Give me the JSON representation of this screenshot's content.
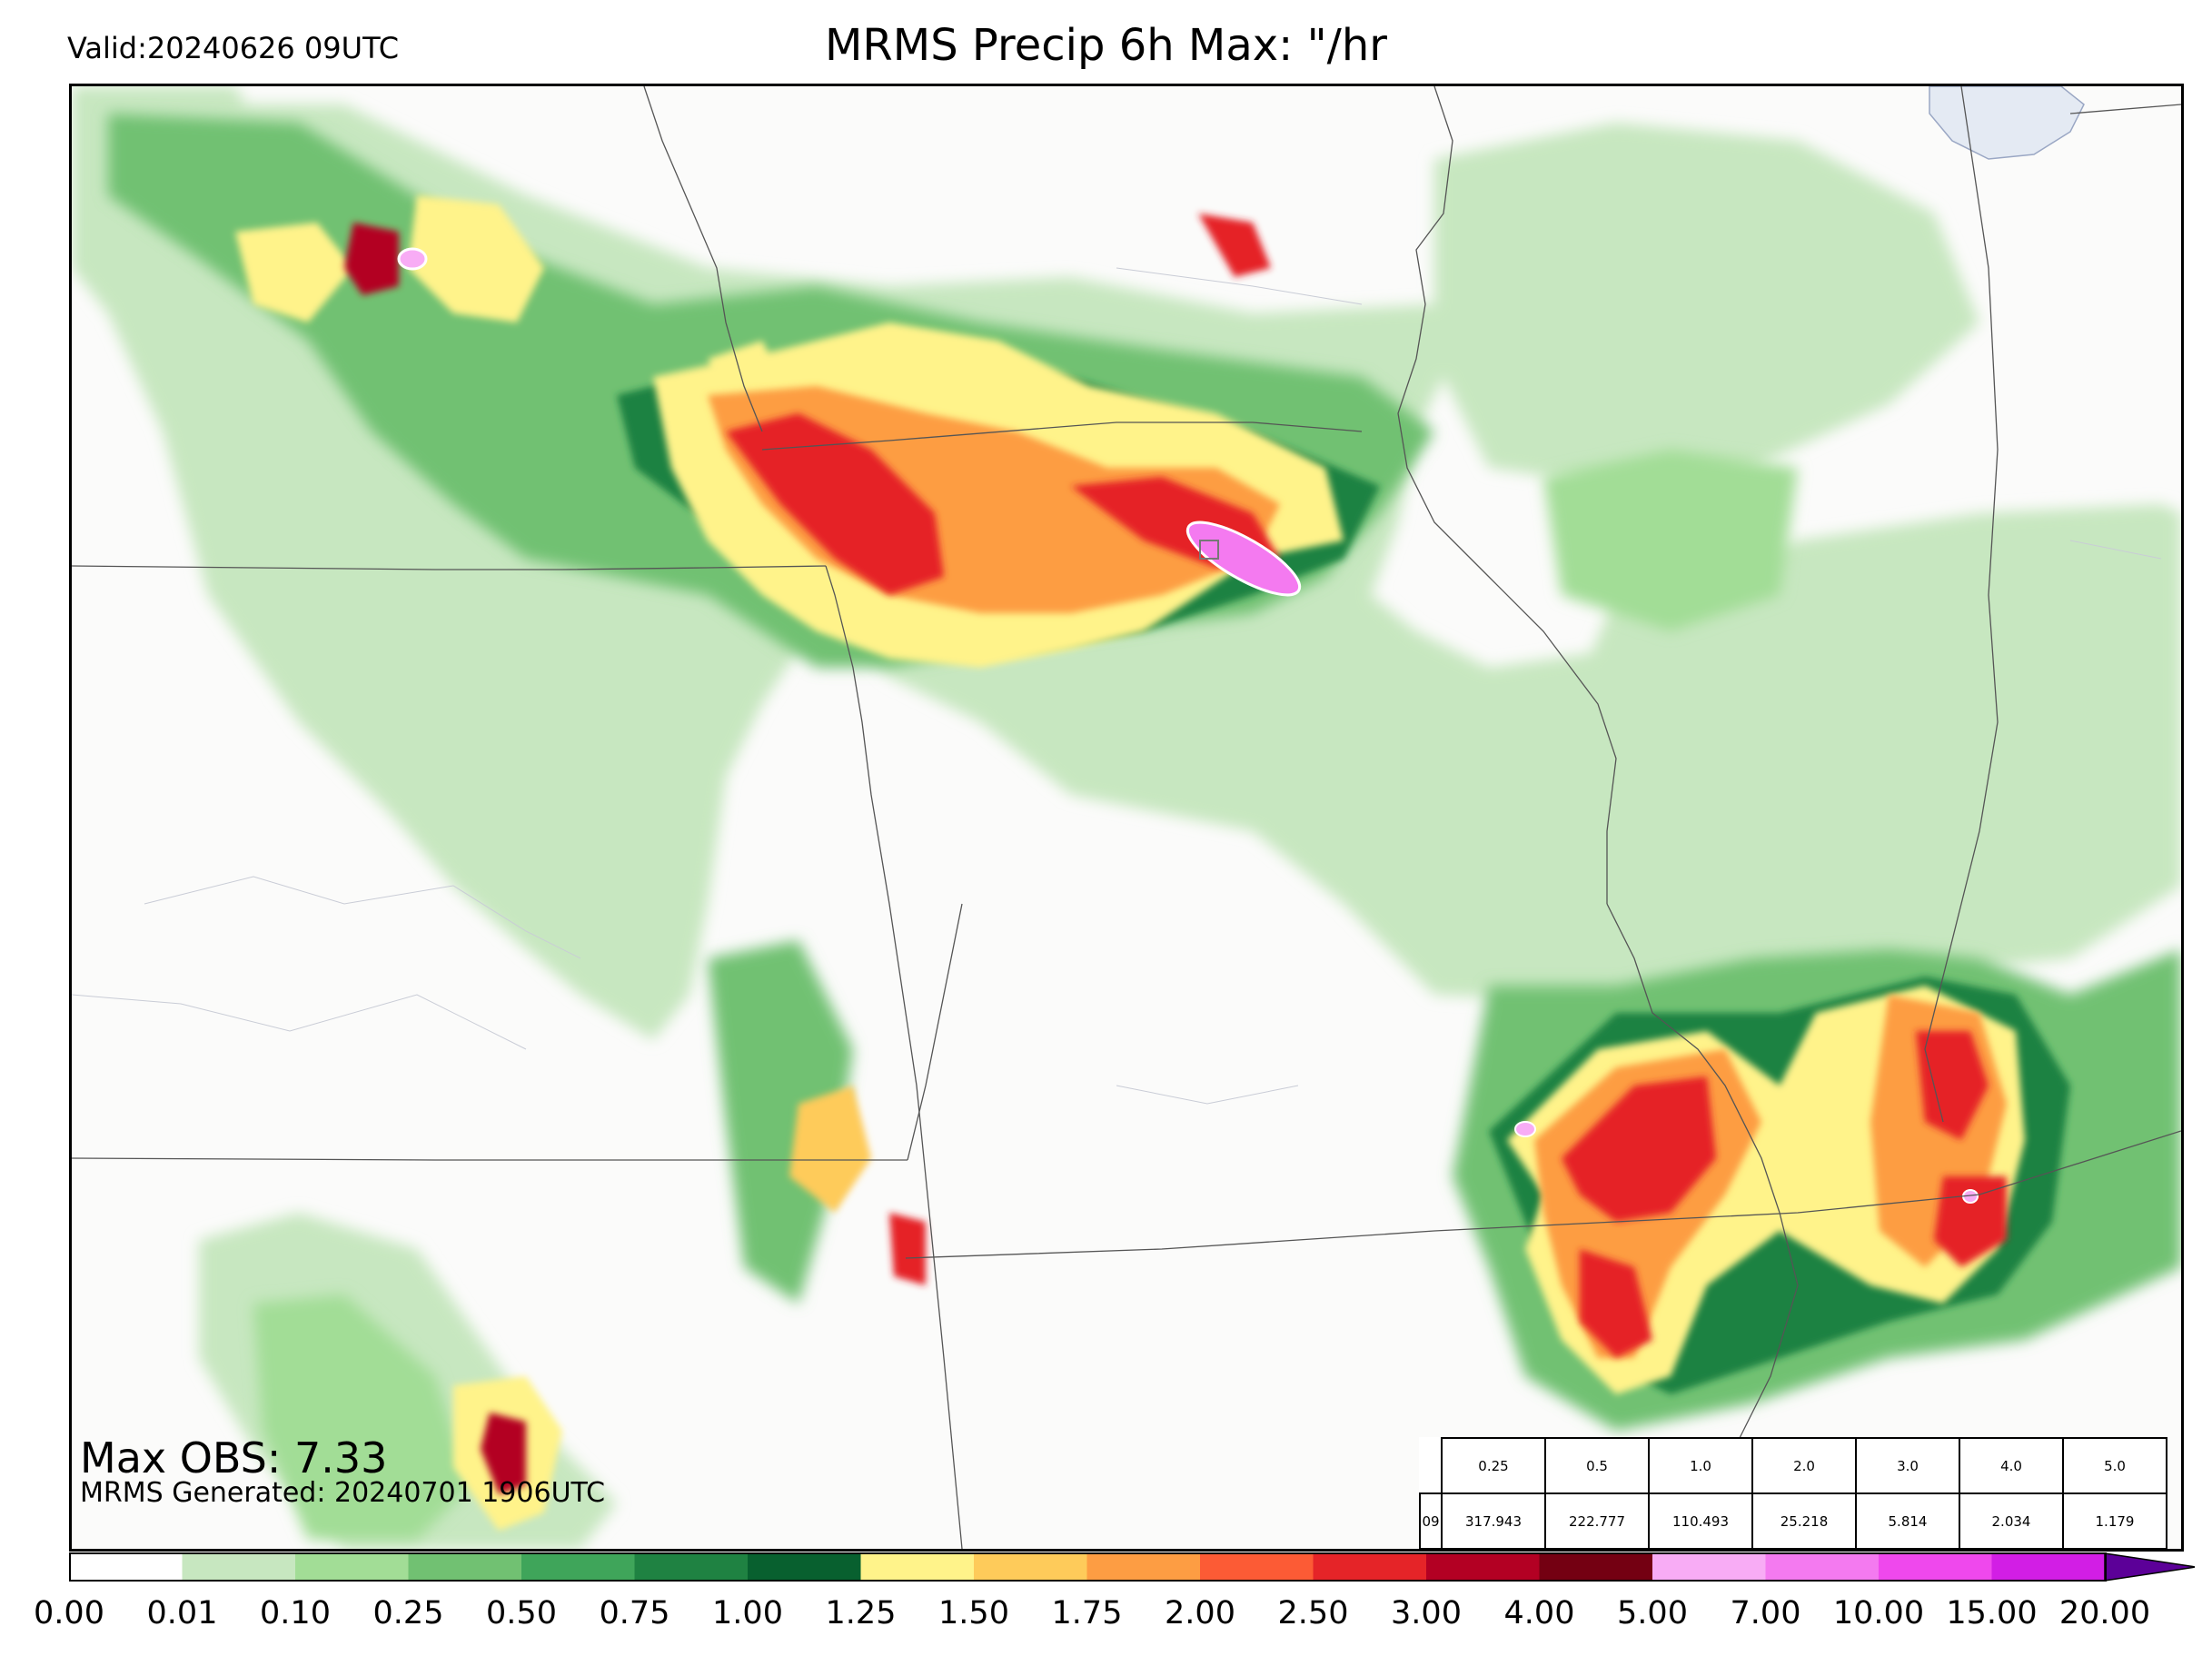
{
  "header": {
    "valid": "Valid:20240626 09UTC",
    "title": "MRMS Precip 6h Max: \"/hr"
  },
  "footer": {
    "max_obs": "Max OBS: 7.33",
    "generated": "MRMS Generated: 20240701 1906UTC"
  },
  "stats_table": {
    "row_label": "09",
    "thresholds": [
      "0.25",
      "0.5",
      "1.0",
      "2.0",
      "3.0",
      "4.0",
      "5.0"
    ],
    "values": [
      "317.943",
      "222.777",
      "110.493",
      "25.218",
      "5.814",
      "2.034",
      "1.179"
    ]
  },
  "colorbar": {
    "ticks": [
      "0.00",
      "0.01",
      "0.10",
      "0.25",
      "0.50",
      "0.75",
      "1.00",
      "1.25",
      "1.50",
      "1.75",
      "2.00",
      "2.50",
      "3.00",
      "4.00",
      "5.00",
      "7.00",
      "10.00",
      "15.00",
      "20.00"
    ],
    "colors": [
      "#ffffff",
      "#c7e7c0",
      "#a2dd96",
      "#71c172",
      "#3fa55a",
      "#1f8242",
      "#08602f",
      "#fff38a",
      "#fecb5a",
      "#fd9d43",
      "#fc5b35",
      "#e52428",
      "#b30023",
      "#740012",
      "#f8acf5",
      "#f47af0",
      "#ef48ed",
      "#d21ee5",
      "#9a10d5",
      "#5c0098"
    ]
  },
  "map_colors": {
    "background": "#fbfbfa",
    "boundary": "#555555",
    "lake": "#e4eaf3"
  }
}
